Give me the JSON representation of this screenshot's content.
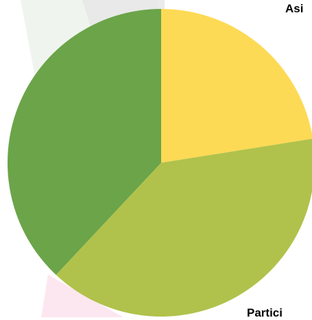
{
  "chart_data": {
    "type": "pie",
    "labels": [
      "Asi",
      "Partici",
      ""
    ],
    "values": [
      22.5,
      39.5,
      38.0
    ],
    "colors": [
      "#FDDA55",
      "#B0C24B",
      "#6BA449"
    ]
  }
}
